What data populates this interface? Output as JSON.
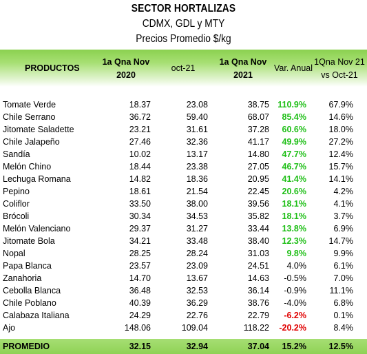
{
  "title": {
    "line1": "SECTOR HORTALIZAS",
    "line2": "CDMX, GDL y MTY",
    "line3": "Precios Promedio $/kg"
  },
  "header": {
    "productos": "PRODUCTOS",
    "col1_l1": "1a Qna Nov",
    "col1_l2": "2020",
    "col2": "oct-21",
    "col3_l1": "1a Qna Nov",
    "col3_l2": "2021",
    "col4": "Var. Anual",
    "col5_l1": "1Qna Nov 21",
    "col5_l2": "vs Oct-21"
  },
  "rows": [
    {
      "name": "Tomate Verde",
      "v1": "18.37",
      "v2": "23.08",
      "v3": "38.75",
      "var": "110.9%",
      "vs": "67.9%",
      "style": "green"
    },
    {
      "name": "Chile Serrano",
      "v1": "36.72",
      "v2": "59.40",
      "v3": "68.07",
      "var": "85.4%",
      "vs": "14.6%",
      "style": "green"
    },
    {
      "name": "Jitomate Saladette",
      "v1": "23.21",
      "v2": "31.61",
      "v3": "37.28",
      "var": "60.6%",
      "vs": "18.0%",
      "style": "green"
    },
    {
      "name": "Chile Jalapeño",
      "v1": "27.46",
      "v2": "32.36",
      "v3": "41.17",
      "var": "49.9%",
      "vs": "27.2%",
      "style": "green"
    },
    {
      "name": "Sandía",
      "v1": "10.02",
      "v2": "13.17",
      "v3": "14.80",
      "var": "47.7%",
      "vs": "12.4%",
      "style": "green"
    },
    {
      "name": "Melón Chino",
      "v1": "18.44",
      "v2": "23.38",
      "v3": "27.05",
      "var": "46.7%",
      "vs": "15.7%",
      "style": "green"
    },
    {
      "name": "Lechuga Romana",
      "v1": "14.82",
      "v2": "18.36",
      "v3": "20.95",
      "var": "41.4%",
      "vs": "14.1%",
      "style": "green"
    },
    {
      "name": "Pepino",
      "v1": "18.61",
      "v2": "21.54",
      "v3": "22.45",
      "var": "20.6%",
      "vs": "4.2%",
      "style": "green"
    },
    {
      "name": "Coliflor",
      "v1": "33.50",
      "v2": "38.00",
      "v3": "39.56",
      "var": "18.1%",
      "vs": "4.1%",
      "style": "green"
    },
    {
      "name": "Brócoli",
      "v1": "30.34",
      "v2": "34.53",
      "v3": "35.82",
      "var": "18.1%",
      "vs": "3.7%",
      "style": "green"
    },
    {
      "name": "Melón Valenciano",
      "v1": "29.37",
      "v2": "31.27",
      "v3": "33.44",
      "var": "13.8%",
      "vs": "6.9%",
      "style": "green"
    },
    {
      "name": "Jitomate Bola",
      "v1": "34.21",
      "v2": "33.48",
      "v3": "38.40",
      "var": "12.3%",
      "vs": "14.7%",
      "style": "green"
    },
    {
      "name": "Nopal",
      "v1": "28.25",
      "v2": "28.24",
      "v3": "31.03",
      "var": "9.8%",
      "vs": "9.9%",
      "style": "green"
    },
    {
      "name": "Papa Blanca",
      "v1": "23.57",
      "v2": "23.09",
      "v3": "24.51",
      "var": "4.0%",
      "vs": "6.1%",
      "style": "normal"
    },
    {
      "name": "Zanahoria",
      "v1": "14.70",
      "v2": "13.67",
      "v3": "14.63",
      "var": "-0.5%",
      "vs": "7.0%",
      "style": "normal"
    },
    {
      "name": "Cebolla Blanca",
      "v1": "36.48",
      "v2": "32.53",
      "v3": "36.14",
      "var": "-0.9%",
      "vs": "11.1%",
      "style": "normal"
    },
    {
      "name": "Chile Poblano",
      "v1": "40.39",
      "v2": "36.29",
      "v3": "38.76",
      "var": "-4.0%",
      "vs": "6.8%",
      "style": "normal"
    },
    {
      "name": "Calabaza Italiana",
      "v1": "24.29",
      "v2": "22.76",
      "v3": "22.79",
      "var": "-6.2%",
      "vs": "0.1%",
      "style": "red"
    },
    {
      "name": "Ajo",
      "v1": "148.06",
      "v2": "109.04",
      "v3": "118.22",
      "var": "-20.2%",
      "vs": "8.4%",
      "style": "red"
    }
  ],
  "footer": {
    "name": "PROMEDIO",
    "v1": "32.15",
    "v2": "32.94",
    "v3": "37.04",
    "var": "15.2%",
    "vs": "12.5%"
  },
  "colors": {
    "header_green": "#8bd150",
    "positive_var": "#1fbf17",
    "negative_var": "#e00000"
  }
}
